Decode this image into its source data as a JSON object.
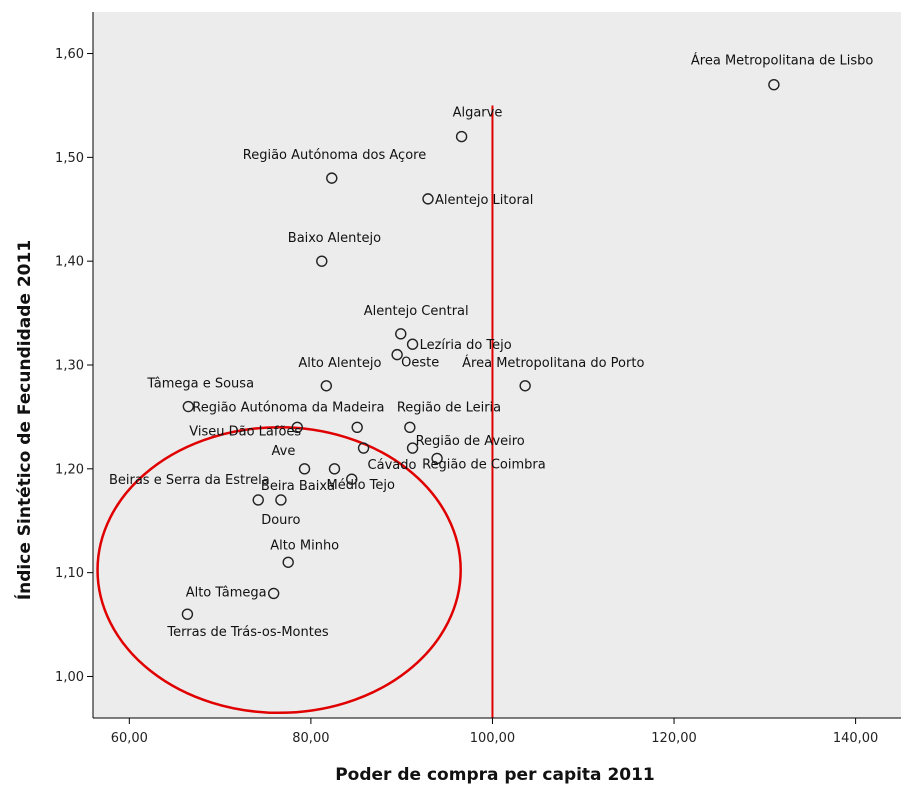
{
  "chart_data": {
    "type": "scatter",
    "xlabel": "Poder de compra per capita 2011",
    "ylabel": "Índice Sintético de Fecundidade 2011",
    "xlim": [
      56,
      145
    ],
    "ylim": [
      0.96,
      1.64
    ],
    "x_ticks": [
      60,
      80,
      100,
      120,
      140
    ],
    "x_tick_labels": [
      "60,00",
      "80,00",
      "100,00",
      "120,00",
      "140,00"
    ],
    "y_ticks": [
      1.0,
      1.1,
      1.2,
      1.3,
      1.4,
      1.5,
      1.6
    ],
    "y_tick_labels": [
      "1,00",
      "1,10",
      "1,20",
      "1,30",
      "1,40",
      "1,50",
      "1,60"
    ],
    "grid": false,
    "reference_line_x": 100,
    "colors": {
      "plot_background": "#ececec",
      "marker": "#222222",
      "reference_line": "#e00000",
      "highlight_ellipse": "#e00000"
    },
    "highlight_ellipse": {
      "x_range": [
        56.5,
        96.5
      ],
      "y_range": [
        0.965,
        1.24
      ]
    },
    "points": [
      {
        "label": "Área Metropolitana de Lisbo",
        "x": 131,
        "y": 1.57
      },
      {
        "label": "Algarve",
        "x": 96.6,
        "y": 1.52
      },
      {
        "label": "Região Autónoma dos Açore",
        "x": 82.3,
        "y": 1.48
      },
      {
        "label": "Alentejo Litoral",
        "x": 92.9,
        "y": 1.46
      },
      {
        "label": "Baixo Alentejo",
        "x": 81.2,
        "y": 1.4
      },
      {
        "label": "Alentejo Central",
        "x": 89.9,
        "y": 1.33
      },
      {
        "label": "Lezíria do Tejo",
        "x": 91.2,
        "y": 1.32
      },
      {
        "label": "Oeste",
        "x": 89.5,
        "y": 1.31
      },
      {
        "label": "Alto Alentejo",
        "x": 81.7,
        "y": 1.28
      },
      {
        "label": "Área Metropolitana do Porto",
        "x": 103.6,
        "y": 1.28
      },
      {
        "label": "Tâmega e Sousa",
        "x": 66.5,
        "y": 1.26
      },
      {
        "label": "Região Autónoma da Madeira",
        "x": 78.5,
        "y": 1.24
      },
      {
        "label": "Região de Leiria",
        "x": 90.9,
        "y": 1.24
      },
      {
        "label": "Viseu Dão Lafões",
        "x": 85.1,
        "y": 1.24
      },
      {
        "label": "Região de Aveiro",
        "x": 91.2,
        "y": 1.22
      },
      {
        "label": "Região de Coimbra",
        "x": 93.9,
        "y": 1.21
      },
      {
        "label": "Cávado",
        "x": 85.8,
        "y": 1.22
      },
      {
        "label": "Ave",
        "x": 79.3,
        "y": 1.2
      },
      {
        "label": "Médio Tejo",
        "x": 82.6,
        "y": 1.2
      },
      {
        "label": "Beiras e Serra da Estrela",
        "x": 84.5,
        "y": 1.19
      },
      {
        "label": "Beira Baixa",
        "x": 76.7,
        "y": 1.17
      },
      {
        "label": "Douro",
        "x": 74.2,
        "y": 1.17
      },
      {
        "label": "Alto Minho",
        "x": 77.5,
        "y": 1.11
      },
      {
        "label": "Alto Tâmega",
        "x": 75.9,
        "y": 1.08
      },
      {
        "label": "Terras de Trás-os-Montes",
        "x": 66.4,
        "y": 1.06
      }
    ]
  }
}
